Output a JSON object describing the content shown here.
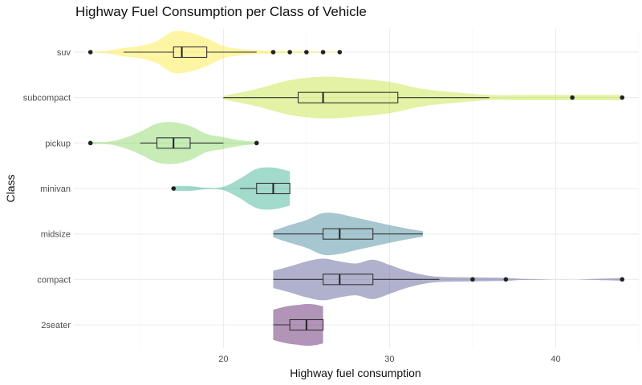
{
  "chart_data": {
    "type": "violin",
    "title": "Highway Fuel Consumption per Class of Vehicle",
    "xlabel": "Highway fuel consumption",
    "ylabel": "Class",
    "xlim": [
      11,
      45
    ],
    "x_ticks": [
      20,
      30,
      40
    ],
    "grid": true,
    "legend": "none",
    "categories": [
      "2seater",
      "compact",
      "midsize",
      "minivan",
      "pickup",
      "subcompact",
      "suv"
    ],
    "series": [
      {
        "category": "2seater",
        "color": "#440154",
        "box": {
          "min": 23,
          "q1": 24,
          "median": 25,
          "q3": 26,
          "max": 26
        },
        "outliers": [],
        "density": [
          [
            23,
            0.65
          ],
          [
            23.5,
            0.75
          ],
          [
            24,
            0.82
          ],
          [
            24.5,
            0.86
          ],
          [
            25,
            0.9
          ],
          [
            25.5,
            0.88
          ],
          [
            26,
            0.8
          ]
        ]
      },
      {
        "category": "compact",
        "color": "#414487",
        "box": {
          "min": 23,
          "q1": 26,
          "median": 27,
          "q3": 29,
          "max": 33
        },
        "outliers": [
          35,
          37,
          44
        ],
        "density": [
          [
            23,
            0.3
          ],
          [
            24,
            0.45
          ],
          [
            25,
            0.62
          ],
          [
            26,
            0.72
          ],
          [
            27,
            0.62
          ],
          [
            28,
            0.55
          ],
          [
            29,
            0.68
          ],
          [
            30,
            0.5
          ],
          [
            31,
            0.3
          ],
          [
            32,
            0.16
          ],
          [
            33,
            0.09
          ],
          [
            35,
            0.07
          ],
          [
            37,
            0.05
          ],
          [
            38,
            0.02
          ],
          [
            39,
            0.01
          ],
          [
            41,
            0.0
          ],
          [
            43,
            0.03
          ],
          [
            44,
            0.05
          ]
        ]
      },
      {
        "category": "midsize",
        "color": "#2a788e",
        "box": {
          "min": 23,
          "q1": 26,
          "median": 27,
          "q3": 29,
          "max": 32
        },
        "outliers": [],
        "density": [
          [
            23,
            0.12
          ],
          [
            24,
            0.32
          ],
          [
            25,
            0.5
          ],
          [
            26,
            0.75
          ],
          [
            27,
            0.72
          ],
          [
            28,
            0.58
          ],
          [
            29,
            0.45
          ],
          [
            30,
            0.32
          ],
          [
            31,
            0.2
          ],
          [
            32,
            0.1
          ]
        ]
      },
      {
        "category": "minivan",
        "color": "#22a884",
        "box": {
          "min": 21,
          "q1": 22,
          "median": 23,
          "q3": 24,
          "max": 24
        },
        "outliers": [
          17
        ],
        "density": [
          [
            17,
            0.1
          ],
          [
            18,
            0.1
          ],
          [
            19,
            0.03
          ],
          [
            20,
            0.07
          ],
          [
            21,
            0.4
          ],
          [
            22,
            0.8
          ],
          [
            23,
            0.85
          ],
          [
            24,
            0.7
          ]
        ]
      },
      {
        "category": "pickup",
        "color": "#7ad151",
        "box": {
          "min": 15,
          "q1": 16,
          "median": 17,
          "q3": 18,
          "max": 20
        },
        "outliers": [
          12,
          22
        ],
        "density": [
          [
            12,
            0.05
          ],
          [
            13,
            0.05
          ],
          [
            14,
            0.2
          ],
          [
            15,
            0.48
          ],
          [
            16,
            0.82
          ],
          [
            17,
            0.88
          ],
          [
            18,
            0.72
          ],
          [
            19,
            0.38
          ],
          [
            20,
            0.25
          ],
          [
            21,
            0.12
          ],
          [
            22,
            0.05
          ]
        ]
      },
      {
        "category": "subcompact",
        "color": "#bddf26",
        "box": {
          "min": 20,
          "q1": 24.5,
          "median": 26,
          "q3": 30.5,
          "max": 36
        },
        "outliers": [
          41,
          44
        ],
        "density": [
          [
            20,
            0.02
          ],
          [
            22,
            0.1
          ],
          [
            24,
            0.2
          ],
          [
            26,
            0.24
          ],
          [
            28,
            0.22
          ],
          [
            30,
            0.18
          ],
          [
            32,
            0.1
          ],
          [
            34,
            0.06
          ],
          [
            36,
            0.03
          ],
          [
            38,
            0.03
          ],
          [
            40,
            0.03
          ],
          [
            42,
            0.03
          ],
          [
            44,
            0.03
          ]
        ]
      },
      {
        "category": "suv",
        "color": "#fde725",
        "box": {
          "min": 14,
          "q1": 17,
          "median": 17.5,
          "q3": 19,
          "max": 22
        },
        "outliers": [
          12,
          23,
          24,
          25,
          26,
          27
        ],
        "density": [
          [
            12,
            0.01
          ],
          [
            13,
            0.05
          ],
          [
            14,
            0.15
          ],
          [
            15,
            0.22
          ],
          [
            16,
            0.4
          ],
          [
            17,
            0.75
          ],
          [
            18,
            0.7
          ],
          [
            19,
            0.5
          ],
          [
            20,
            0.22
          ],
          [
            21,
            0.12
          ],
          [
            22,
            0.07
          ],
          [
            23,
            0.05
          ],
          [
            24,
            0.04
          ],
          [
            25,
            0.03
          ],
          [
            26,
            0.02
          ],
          [
            27,
            0.01
          ]
        ]
      }
    ]
  }
}
